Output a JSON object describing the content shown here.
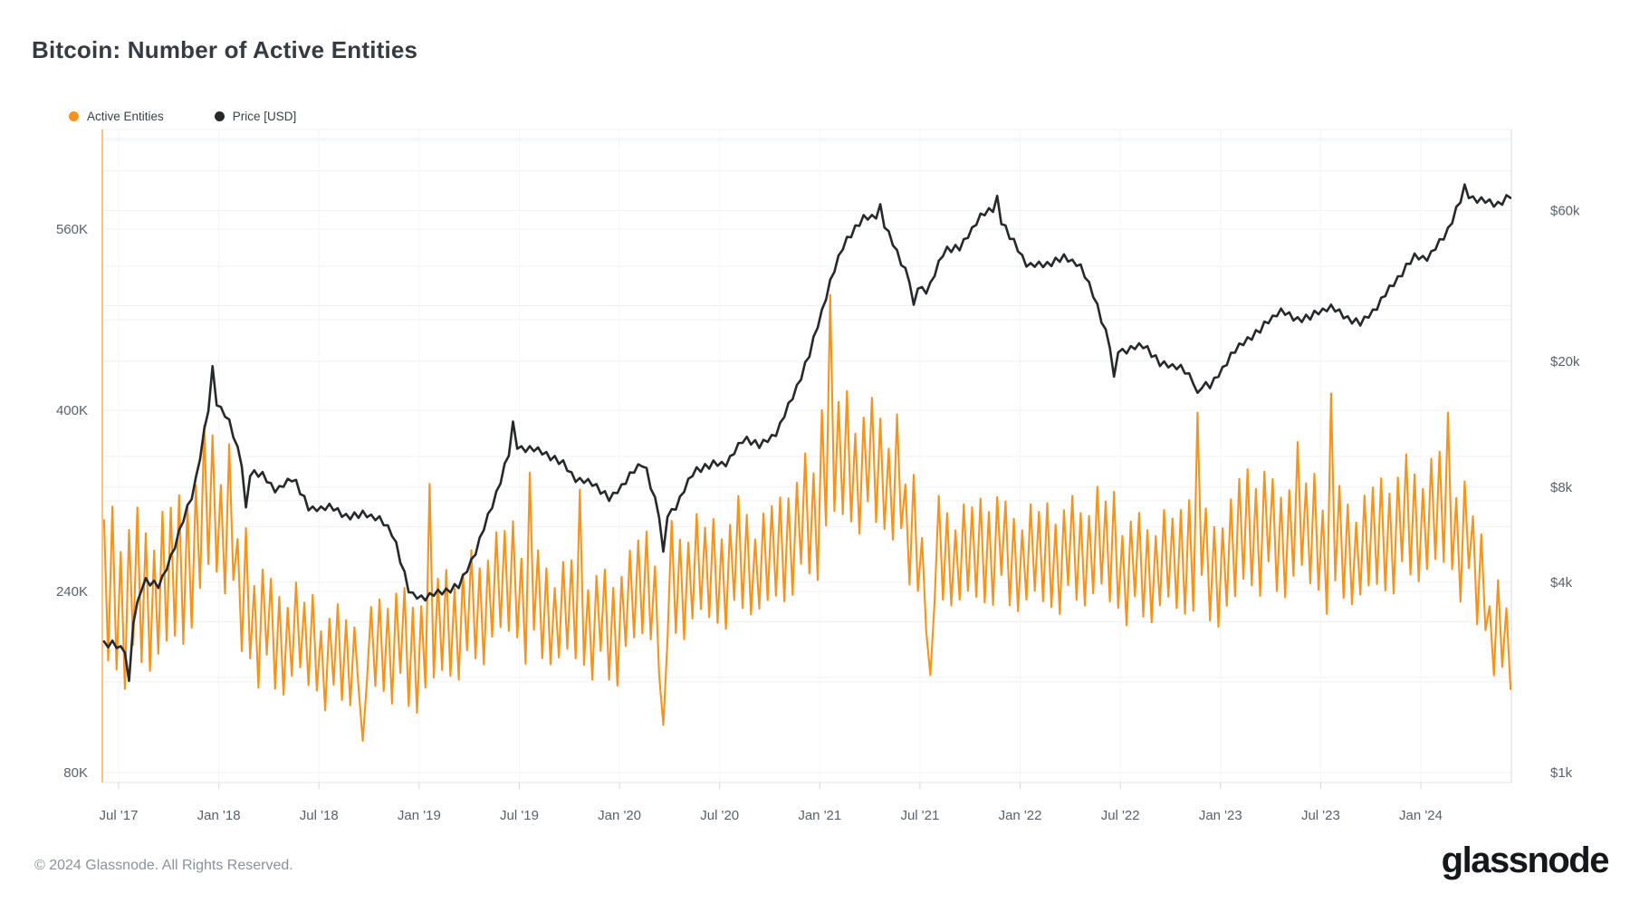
{
  "page": {
    "background": "#FFFFFF"
  },
  "header": {
    "title": "Bitcoin: Number of Active Entities"
  },
  "legend": [
    {
      "label": "Active Entities",
      "color": "#F7931A"
    },
    {
      "label": "Price [USD]",
      "color": "#26282B"
    }
  ],
  "footer": {
    "copyright": "© 2024 Glassnode. All Rights Reserved.",
    "brand": "glassnode"
  },
  "chart_data": {
    "type": "line",
    "title": "Bitcoin: Number of Active Entities",
    "x_start": "2017-06",
    "x_end": "2024-06",
    "x_interval": "monthly",
    "x_count": 85,
    "grid": true,
    "legend_position": "top-left",
    "x_axis": {
      "ticks": [
        "Jul '17",
        "Jan '18",
        "Jul '18",
        "Jan '19",
        "Jul '19",
        "Jan '20",
        "Jul '20",
        "Jan '21",
        "Jul '21",
        "Jan '22",
        "Jul '22",
        "Jan '23",
        "Jul '23",
        "Jan '24"
      ]
    },
    "left_axis": {
      "scale": "linear",
      "unit": "entities",
      "ticks": [
        {
          "label": "560K",
          "value": 560
        },
        {
          "label": "400K",
          "value": 400
        },
        {
          "label": "240K",
          "value": 240
        },
        {
          "label": "80K",
          "value": 80
        }
      ]
    },
    "right_axis": {
      "scale": "log",
      "unit": "USD",
      "ticks": [
        {
          "label": "$60k",
          "value": 60
        },
        {
          "label": "$20k",
          "value": 20
        },
        {
          "label": "$8k",
          "value": 8
        },
        {
          "label": "$4k",
          "value": 4
        },
        {
          "label": "$1k",
          "value": 1
        }
      ]
    },
    "series": [
      {
        "name": "Active Entities",
        "color": "#F7931A",
        "axis": "left",
        "unit": "thousand entities",
        "monthly_base_thousands": [
          235,
          232,
          242,
          242,
          252,
          278,
          322,
          298,
          232,
          213,
          200,
          203,
          190,
          180,
          184,
          188,
          188,
          195,
          188,
          200,
          207,
          214,
          226,
          242,
          245,
          236,
          226,
          220,
          220,
          213,
          208,
          230,
          240,
          228,
          250,
          258,
          253,
          258,
          272,
          263,
          272,
          292,
          306,
          362,
          353,
          348,
          353,
          336,
          286,
          258,
          276,
          271,
          271,
          281,
          271,
          271,
          267,
          271,
          276,
          281,
          271,
          261,
          261,
          266,
          261,
          286,
          261,
          270,
          291,
          297,
          287,
          301,
          287,
          279,
          281,
          277,
          285,
          295,
          305,
          304,
          310,
          290,
          256,
          204,
          186
        ],
        "monthly_swing_thousands": [
          80,
          78,
          76,
          76,
          73,
          70,
          68,
          80,
          64,
          58,
          54,
          50,
          47,
          45,
          47,
          45,
          45,
          54,
          58,
          60,
          52,
          52,
          53,
          56,
          57,
          60,
          53,
          51,
          56,
          51,
          54,
          51,
          53,
          62,
          55,
          56,
          51,
          51,
          55,
          51,
          51,
          55,
          59,
          85,
          64,
          57,
          61,
          67,
          57,
          53,
          51,
          51,
          51,
          53,
          51,
          51,
          51,
          51,
          51,
          57,
          57,
          51,
          51,
          51,
          51,
          63,
          55,
          57,
          57,
          61,
          55,
          63,
          57,
          59,
          55,
          53,
          55,
          57,
          59,
          59,
          63,
          59,
          53,
          51,
          46
        ],
        "notable_points": [
          {
            "month": "2017-12",
            "value_thousands": 378
          },
          {
            "month": "2018-09",
            "value_thousands": 108
          },
          {
            "month": "2019-01",
            "value_thousands": 335
          },
          {
            "month": "2019-07",
            "value_thousands": 345
          },
          {
            "month": "2019-10",
            "value_thousands": 330
          },
          {
            "month": "2020-03",
            "value_thousands": 122
          },
          {
            "month": "2021-01",
            "value_thousands": 502
          },
          {
            "month": "2021-07",
            "value_thousands": 166
          },
          {
            "month": "2022-11",
            "value_thousands": 398
          },
          {
            "month": "2023-05",
            "value_thousands": 372
          },
          {
            "month": "2023-07",
            "value_thousands": 415
          },
          {
            "month": "2024-02",
            "value_thousands": 398
          },
          {
            "month": "2024-06",
            "value_thousands": 150
          }
        ]
      },
      {
        "name": "Price [USD]",
        "color": "#26282B",
        "axis": "right",
        "unit": "USD thousands",
        "monthly_usd_thousands": [
          2.55,
          2.45,
          4.1,
          3.9,
          5.5,
          7.8,
          15.5,
          13.5,
          9.0,
          8.8,
          7.8,
          8.6,
          6.7,
          7.0,
          6.5,
          6.55,
          6.45,
          5.6,
          3.6,
          3.6,
          3.75,
          3.95,
          5.2,
          7.3,
          10.8,
          10.6,
          10.3,
          9.6,
          8.4,
          8.2,
          7.3,
          8.6,
          9.6,
          6.2,
          7.1,
          9.1,
          9.4,
          9.6,
          11.5,
          10.8,
          12.1,
          16.0,
          22.0,
          34.0,
          48.0,
          56.0,
          58.5,
          46.0,
          35.0,
          33.5,
          45.5,
          46.0,
          57.0,
          61.0,
          48.5,
          40.0,
          40.5,
          42.5,
          41.0,
          31.5,
          21.5,
          21.8,
          22.5,
          19.4,
          19.4,
          17.0,
          16.8,
          20.5,
          23.3,
          25.5,
          29.0,
          27.2,
          27.8,
          29.9,
          27.6,
          26.4,
          30.5,
          36.0,
          42.5,
          42.8,
          50.5,
          67.5,
          65.0,
          62.5,
          68.0
        ],
        "notable_points": [
          {
            "month": "2017-07",
            "value_usd_thousands": 1.95
          },
          {
            "month": "2017-12",
            "value_usd_thousands": 19.3
          },
          {
            "month": "2018-02",
            "value_usd_thousands": 6.9
          },
          {
            "month": "2019-06",
            "value_usd_thousands": 12.9
          },
          {
            "month": "2020-03",
            "value_usd_thousands": 5.0
          },
          {
            "month": "2021-04",
            "value_usd_thousands": 62.8
          },
          {
            "month": "2021-06",
            "value_usd_thousands": 30.2
          },
          {
            "month": "2021-11",
            "value_usd_thousands": 66.8
          },
          {
            "month": "2022-06",
            "value_usd_thousands": 17.9
          },
          {
            "month": "2022-11",
            "value_usd_thousands": 15.9
          },
          {
            "month": "2024-03",
            "value_usd_thousands": 72.5
          }
        ]
      }
    ]
  }
}
